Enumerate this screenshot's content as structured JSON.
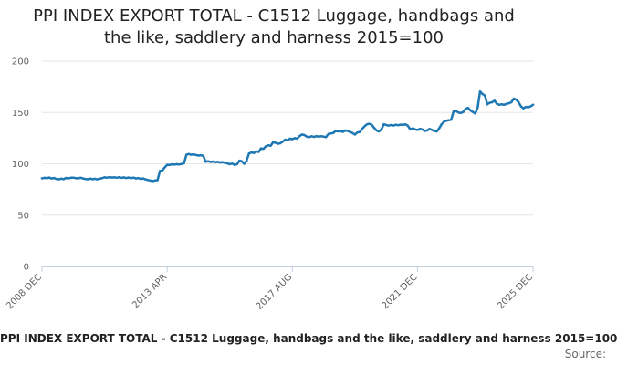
{
  "chart_data": {
    "type": "line",
    "title_lines": [
      "PPI INDEX EXPORT TOTAL - C1512 Luggage, handbags and",
      "the like, saddlery and harness 2015=100"
    ],
    "caption": "PPI INDEX EXPORT TOTAL - C1512 Luggage, handbags and the like, saddlery and harness 2015=100",
    "source_label": "Source:",
    "ylim": [
      0,
      200
    ],
    "yticks": [
      0,
      50,
      100,
      150,
      200
    ],
    "xlim": [
      "2008-12",
      "2025-12"
    ],
    "xtick_labels": [
      "2008 DEC",
      "2013 APR",
      "2017 AUG",
      "2021 DEC",
      "2025 DEC"
    ],
    "xtick_dates": [
      "2008-12",
      "2013-04",
      "2017-08",
      "2021-12",
      "2025-12"
    ],
    "grid": true,
    "line_color": "#1f78b4",
    "series": [
      {
        "points": [
          [
            "2008-12",
            85.8
          ],
          [
            "2009-01",
            86.3
          ],
          [
            "2009-02",
            86.0
          ],
          [
            "2009-03",
            86.6
          ],
          [
            "2009-04",
            85.6
          ],
          [
            "2009-05",
            86.2
          ],
          [
            "2009-06",
            85.1
          ],
          [
            "2009-07",
            84.8
          ],
          [
            "2009-08",
            85.5
          ],
          [
            "2009-09",
            85.0
          ],
          [
            "2009-10",
            86.2
          ],
          [
            "2009-11",
            85.7
          ],
          [
            "2009-12",
            86.4
          ],
          [
            "2010-01",
            86.5
          ],
          [
            "2010-02",
            86.0
          ],
          [
            "2010-03",
            85.8
          ],
          [
            "2010-04",
            86.4
          ],
          [
            "2010-05",
            85.7
          ],
          [
            "2010-06",
            85.2
          ],
          [
            "2010-07",
            84.9
          ],
          [
            "2010-08",
            85.5
          ],
          [
            "2010-09",
            85.0
          ],
          [
            "2010-10",
            85.4
          ],
          [
            "2010-11",
            84.8
          ],
          [
            "2010-12",
            85.5
          ],
          [
            "2011-01",
            86.0
          ],
          [
            "2011-02",
            86.8
          ],
          [
            "2011-03",
            86.4
          ],
          [
            "2011-04",
            87.0
          ],
          [
            "2011-05",
            86.6
          ],
          [
            "2011-06",
            86.8
          ],
          [
            "2011-07",
            86.4
          ],
          [
            "2011-08",
            86.9
          ],
          [
            "2011-09",
            86.3
          ],
          [
            "2011-10",
            86.7
          ],
          [
            "2011-11",
            86.1
          ],
          [
            "2011-12",
            86.6
          ],
          [
            "2012-01",
            86.0
          ],
          [
            "2012-02",
            86.5
          ],
          [
            "2012-03",
            85.7
          ],
          [
            "2012-04",
            86.1
          ],
          [
            "2012-05",
            85.3
          ],
          [
            "2012-06",
            85.7
          ],
          [
            "2012-07",
            84.8
          ],
          [
            "2012-08",
            84.2
          ],
          [
            "2012-09",
            83.6
          ],
          [
            "2012-10",
            83.2
          ],
          [
            "2012-11",
            83.8
          ],
          [
            "2012-12",
            84.0
          ],
          [
            "2013-01",
            93.0
          ],
          [
            "2013-02",
            93.5
          ],
          [
            "2013-03",
            96.5
          ],
          [
            "2013-04",
            99.0
          ],
          [
            "2013-05",
            98.8
          ],
          [
            "2013-06",
            99.5
          ],
          [
            "2013-07",
            99.2
          ],
          [
            "2013-08",
            99.6
          ],
          [
            "2013-09",
            99.3
          ],
          [
            "2013-10",
            99.8
          ],
          [
            "2013-11",
            100.5
          ],
          [
            "2013-12",
            108.8
          ],
          [
            "2014-01",
            109.5
          ],
          [
            "2014-02",
            108.8
          ],
          [
            "2014-03",
            109.2
          ],
          [
            "2014-04",
            108.5
          ],
          [
            "2014-05",
            108.0
          ],
          [
            "2014-06",
            108.3
          ],
          [
            "2014-07",
            107.8
          ],
          [
            "2014-08",
            102.0
          ],
          [
            "2014-09",
            102.5
          ],
          [
            "2014-10",
            101.8
          ],
          [
            "2014-11",
            102.2
          ],
          [
            "2014-12",
            101.5
          ],
          [
            "2015-01",
            101.9
          ],
          [
            "2015-02",
            101.3
          ],
          [
            "2015-03",
            101.6
          ],
          [
            "2015-04",
            101.0
          ],
          [
            "2015-05",
            100.4
          ],
          [
            "2015-06",
            99.6
          ],
          [
            "2015-07",
            100.2
          ],
          [
            "2015-08",
            99.0
          ],
          [
            "2015-09",
            99.5
          ],
          [
            "2015-10",
            103.0
          ],
          [
            "2015-11",
            102.5
          ],
          [
            "2015-12",
            100.0
          ],
          [
            "2016-01",
            103.0
          ],
          [
            "2016-02",
            110.0
          ],
          [
            "2016-03",
            111.0
          ],
          [
            "2016-04",
            110.5
          ],
          [
            "2016-05",
            112.0
          ],
          [
            "2016-06",
            111.5
          ],
          [
            "2016-07",
            115.0
          ],
          [
            "2016-08",
            114.5
          ],
          [
            "2016-09",
            117.0
          ],
          [
            "2016-10",
            118.0
          ],
          [
            "2016-11",
            117.5
          ],
          [
            "2016-12",
            121.0
          ],
          [
            "2017-01",
            120.5
          ],
          [
            "2017-02",
            119.5
          ],
          [
            "2017-03",
            120.0
          ],
          [
            "2017-04",
            121.5
          ],
          [
            "2017-05",
            123.5
          ],
          [
            "2017-06",
            123.0
          ],
          [
            "2017-07",
            124.5
          ],
          [
            "2017-08",
            124.0
          ],
          [
            "2017-09",
            125.0
          ],
          [
            "2017-10",
            124.5
          ],
          [
            "2017-11",
            127.0
          ],
          [
            "2017-12",
            128.5
          ],
          [
            "2018-01",
            128.0
          ],
          [
            "2018-02",
            126.5
          ],
          [
            "2018-03",
            126.0
          ],
          [
            "2018-04",
            126.8
          ],
          [
            "2018-05",
            126.2
          ],
          [
            "2018-06",
            127.0
          ],
          [
            "2018-07",
            126.4
          ],
          [
            "2018-08",
            126.9
          ],
          [
            "2018-09",
            126.5
          ],
          [
            "2018-10",
            126.0
          ],
          [
            "2018-11",
            129.0
          ],
          [
            "2018-12",
            129.5
          ],
          [
            "2019-01",
            130.0
          ],
          [
            "2019-02",
            132.0
          ],
          [
            "2019-03",
            131.5
          ],
          [
            "2019-04",
            132.0
          ],
          [
            "2019-05",
            131.0
          ],
          [
            "2019-06",
            132.5
          ],
          [
            "2019-07",
            132.0
          ],
          [
            "2019-08",
            131.0
          ],
          [
            "2019-09",
            130.0
          ],
          [
            "2019-10",
            128.5
          ],
          [
            "2019-11",
            130.5
          ],
          [
            "2019-12",
            131.0
          ],
          [
            "2020-01",
            134.0
          ],
          [
            "2020-02",
            136.5
          ],
          [
            "2020-03",
            138.5
          ],
          [
            "2020-04",
            139.0
          ],
          [
            "2020-05",
            138.0
          ],
          [
            "2020-06",
            135.0
          ],
          [
            "2020-07",
            132.5
          ],
          [
            "2020-08",
            131.5
          ],
          [
            "2020-09",
            133.5
          ],
          [
            "2020-10",
            138.5
          ],
          [
            "2020-11",
            137.8
          ],
          [
            "2020-12",
            137.2
          ],
          [
            "2021-01",
            137.8
          ],
          [
            "2021-02",
            137.3
          ],
          [
            "2021-03",
            138.0
          ],
          [
            "2021-04",
            137.6
          ],
          [
            "2021-05",
            138.2
          ],
          [
            "2021-06",
            137.8
          ],
          [
            "2021-07",
            138.5
          ],
          [
            "2021-08",
            137.0
          ],
          [
            "2021-09",
            133.5
          ],
          [
            "2021-10",
            134.5
          ],
          [
            "2021-11",
            133.5
          ],
          [
            "2021-12",
            133.0
          ],
          [
            "2022-01",
            134.0
          ],
          [
            "2022-02",
            133.5
          ],
          [
            "2022-03",
            132.0
          ],
          [
            "2022-04",
            132.5
          ],
          [
            "2022-05",
            134.0
          ],
          [
            "2022-06",
            133.0
          ],
          [
            "2022-07",
            132.0
          ],
          [
            "2022-08",
            131.5
          ],
          [
            "2022-09",
            134.5
          ],
          [
            "2022-10",
            138.5
          ],
          [
            "2022-11",
            141.0
          ],
          [
            "2022-12",
            142.0
          ],
          [
            "2023-01",
            142.5
          ],
          [
            "2023-02",
            143.0
          ],
          [
            "2023-03",
            151.0
          ],
          [
            "2023-04",
            151.5
          ],
          [
            "2023-05",
            150.0
          ],
          [
            "2023-06",
            149.5
          ],
          [
            "2023-07",
            150.5
          ],
          [
            "2023-08",
            153.5
          ],
          [
            "2023-09",
            154.5
          ],
          [
            "2023-10",
            152.0
          ],
          [
            "2023-11",
            150.5
          ],
          [
            "2023-12",
            149.0
          ],
          [
            "2024-01",
            155.0
          ],
          [
            "2024-02",
            170.5
          ],
          [
            "2024-03",
            168.0
          ],
          [
            "2024-04",
            166.5
          ],
          [
            "2024-05",
            158.0
          ],
          [
            "2024-06",
            159.5
          ],
          [
            "2024-07",
            160.0
          ],
          [
            "2024-08",
            161.5
          ],
          [
            "2024-09",
            158.5
          ],
          [
            "2024-10",
            157.5
          ],
          [
            "2024-11",
            158.0
          ],
          [
            "2024-12",
            157.5
          ],
          [
            "2025-01",
            158.5
          ],
          [
            "2025-02",
            159.0
          ],
          [
            "2025-03",
            160.0
          ],
          [
            "2025-04",
            163.5
          ],
          [
            "2025-05",
            162.5
          ],
          [
            "2025-06",
            160.0
          ],
          [
            "2025-07",
            156.0
          ],
          [
            "2025-08",
            154.0
          ],
          [
            "2025-09",
            155.5
          ],
          [
            "2025-10",
            155.0
          ],
          [
            "2025-11",
            156.0
          ],
          [
            "2025-12",
            157.5
          ]
        ]
      }
    ]
  }
}
